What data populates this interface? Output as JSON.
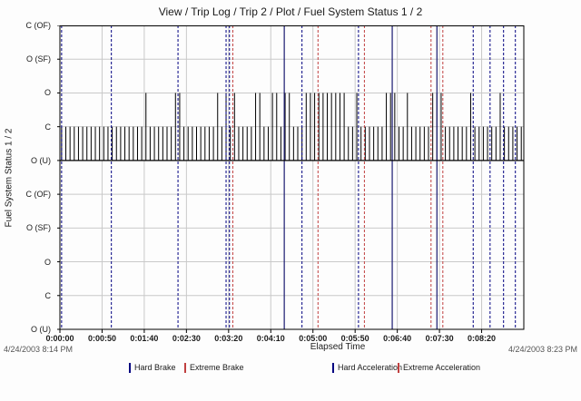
{
  "title": "View / Trip Log / Trip 2 / Plot / Fuel System Status 1 / 2",
  "y_axis_title": "Fuel System Status 1 / 2",
  "x_axis_title": "Elapsed Time",
  "start_timestamp": "4/24/2003 8:14 PM",
  "end_timestamp": "4/24/2003 8:23 PM",
  "legend": {
    "items": [
      {
        "label": "Hard Brake",
        "style": "dashed",
        "color": "#000080"
      },
      {
        "label": "Extreme Brake",
        "style": "solid",
        "color": "#c04040"
      },
      {
        "label": "Hard Acceleration",
        "style": "dashed",
        "color": "#000080"
      },
      {
        "label": "Extreme Acceleration",
        "style": "solid",
        "color": "#c04040"
      }
    ]
  },
  "chart_data": {
    "type": "line",
    "title": "View / Trip Log / Trip 2 / Plot / Fuel System Status 1 / 2",
    "xlabel": "Elapsed Time",
    "ylabel": "Fuel System Status 1 / 2",
    "x_ticks": [
      "0:00:00",
      "0:00:50",
      "0:01:40",
      "0:02:30",
      "0:03:20",
      "0:04:10",
      "0:05:00",
      "0:05:50",
      "0:06:40",
      "0:07:30",
      "0:08:20"
    ],
    "x_tick_seconds": [
      0,
      50,
      100,
      150,
      200,
      250,
      300,
      350,
      400,
      450,
      500
    ],
    "x_range_seconds": [
      0,
      550
    ],
    "y_levels": [
      "C (OF)",
      "O (SF)",
      "O",
      "C",
      "O (U)",
      "C (OF)",
      "O (SF)",
      "O",
      "C",
      "O (U)"
    ],
    "grid": true,
    "legend_position": "bottom",
    "signal": {
      "description": "Fuel system status square-wave in upper panel: pulses every 5s from baseline O (U) up to C, with spikes to O; lower panel empty",
      "baseline_level": "O (U)",
      "pulse_level": "C",
      "spike_level": "O",
      "tooth_interval_seconds": 5,
      "start_second": 2,
      "end_second": 548,
      "spikes_to_O_seconds": [
        102,
        138,
        143,
        186,
        197,
        208,
        231,
        237,
        250,
        255,
        266,
        270,
        350,
        354,
        387,
        392,
        397,
        414,
        440,
        445,
        450,
        487,
        522
      ],
      "high_regions_seconds": [
        [
          288,
          341
        ]
      ]
    },
    "events": {
      "hard_dashed_seconds": [
        2,
        61,
        140,
        197,
        201,
        287,
        354,
        490,
        510,
        526,
        540
      ],
      "extreme_dashed_seconds": [
        205,
        306,
        361,
        440,
        454
      ],
      "solid_marker_seconds": [
        266,
        394,
        447
      ]
    },
    "colors": {
      "hard": "#000080",
      "extreme": "#c04040",
      "solid_marker": "#191970",
      "grid": "#c9c9c9",
      "signal": "#000000",
      "axis": "#000000"
    }
  }
}
